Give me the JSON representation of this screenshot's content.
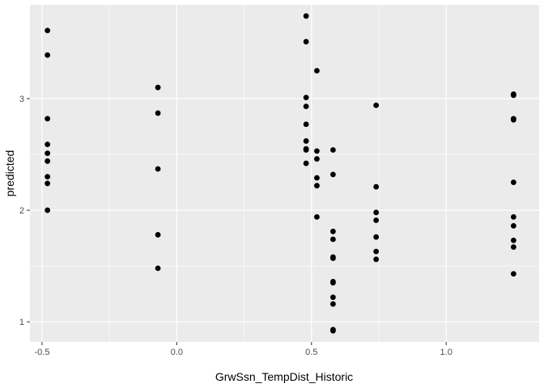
{
  "chart_data": {
    "type": "scatter",
    "xlabel": "GrwSsn_TempDist_Historic",
    "ylabel": "predicted",
    "xlim": [
      -0.545,
      1.345
    ],
    "ylim": [
      0.82,
      3.84
    ],
    "x_ticks": [
      -0.5,
      0.0,
      0.5,
      1.0
    ],
    "x_tick_labels": [
      "-0.5",
      "0.0",
      "0.5",
      "1.0"
    ],
    "y_ticks": [
      1,
      2,
      3
    ],
    "y_tick_labels": [
      "1",
      "2",
      "3"
    ],
    "grid": true,
    "colors": {
      "panel": "#ebebeb",
      "grid": "#ffffff",
      "point": "#000000"
    },
    "points": [
      {
        "x": -0.48,
        "y": 3.61
      },
      {
        "x": -0.48,
        "y": 3.39
      },
      {
        "x": -0.48,
        "y": 2.82
      },
      {
        "x": -0.48,
        "y": 2.59
      },
      {
        "x": -0.48,
        "y": 2.51
      },
      {
        "x": -0.48,
        "y": 2.44
      },
      {
        "x": -0.48,
        "y": 2.3
      },
      {
        "x": -0.48,
        "y": 2.24
      },
      {
        "x": -0.48,
        "y": 2.0
      },
      {
        "x": -0.07,
        "y": 3.1
      },
      {
        "x": -0.07,
        "y": 2.87
      },
      {
        "x": -0.07,
        "y": 2.37
      },
      {
        "x": -0.07,
        "y": 1.78
      },
      {
        "x": -0.07,
        "y": 1.48
      },
      {
        "x": 0.48,
        "y": 3.74
      },
      {
        "x": 0.48,
        "y": 3.51
      },
      {
        "x": 0.48,
        "y": 3.01
      },
      {
        "x": 0.48,
        "y": 2.93
      },
      {
        "x": 0.48,
        "y": 2.77
      },
      {
        "x": 0.48,
        "y": 2.62
      },
      {
        "x": 0.48,
        "y": 2.55
      },
      {
        "x": 0.48,
        "y": 2.54
      },
      {
        "x": 0.48,
        "y": 2.42
      },
      {
        "x": 0.52,
        "y": 3.25
      },
      {
        "x": 0.52,
        "y": 2.53
      },
      {
        "x": 0.52,
        "y": 2.46
      },
      {
        "x": 0.52,
        "y": 2.29
      },
      {
        "x": 0.52,
        "y": 2.22
      },
      {
        "x": 0.52,
        "y": 1.94
      },
      {
        "x": 0.58,
        "y": 2.54
      },
      {
        "x": 0.58,
        "y": 2.32
      },
      {
        "x": 0.58,
        "y": 1.81
      },
      {
        "x": 0.58,
        "y": 1.74
      },
      {
        "x": 0.58,
        "y": 1.58
      },
      {
        "x": 0.58,
        "y": 1.57
      },
      {
        "x": 0.58,
        "y": 1.36
      },
      {
        "x": 0.58,
        "y": 1.35
      },
      {
        "x": 0.58,
        "y": 1.22
      },
      {
        "x": 0.58,
        "y": 1.16
      },
      {
        "x": 0.58,
        "y": 0.93
      },
      {
        "x": 0.58,
        "y": 0.92
      },
      {
        "x": 0.74,
        "y": 2.94
      },
      {
        "x": 0.74,
        "y": 2.21
      },
      {
        "x": 0.74,
        "y": 1.98
      },
      {
        "x": 0.74,
        "y": 1.91
      },
      {
        "x": 0.74,
        "y": 1.76
      },
      {
        "x": 0.74,
        "y": 1.63
      },
      {
        "x": 0.74,
        "y": 1.56
      },
      {
        "x": 1.25,
        "y": 3.04
      },
      {
        "x": 1.25,
        "y": 3.03
      },
      {
        "x": 1.25,
        "y": 2.82
      },
      {
        "x": 1.25,
        "y": 2.81
      },
      {
        "x": 1.25,
        "y": 2.25
      },
      {
        "x": 1.25,
        "y": 1.94
      },
      {
        "x": 1.25,
        "y": 1.86
      },
      {
        "x": 1.25,
        "y": 1.73
      },
      {
        "x": 1.25,
        "y": 1.67
      },
      {
        "x": 1.25,
        "y": 1.43
      }
    ]
  }
}
